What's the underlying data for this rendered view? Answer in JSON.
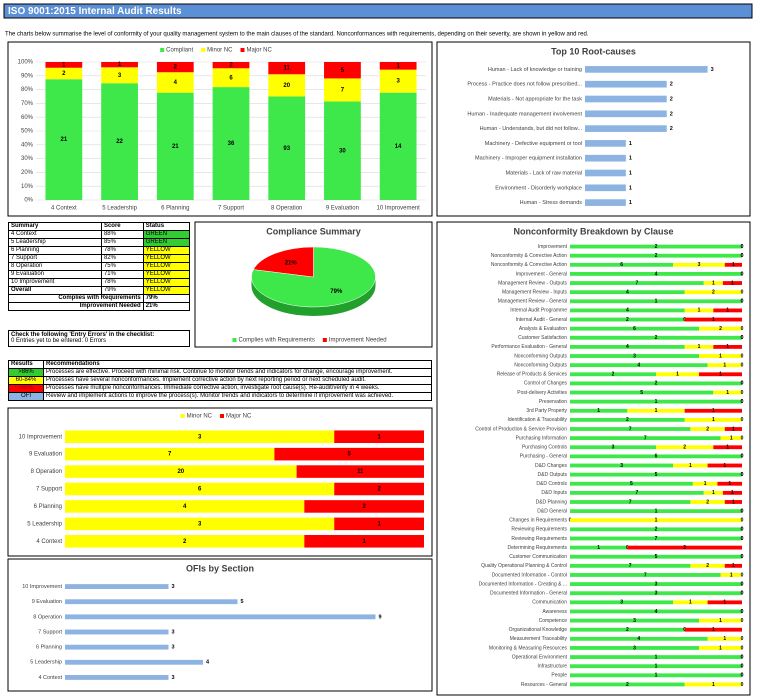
{
  "header": {
    "title": "ISO 9001:2015 Internal Audit Results",
    "subtitle": "The charts below summarise the level of conformity of your quality management system to the main clauses of the standard. Nonconformances with requirements, depending on their severity, are shown in yellow and red."
  },
  "summary": {
    "columns": [
      "Summary",
      "Score",
      "Status"
    ],
    "rows": [
      {
        "section": "4 Context",
        "score": "88%",
        "status": "GREEN",
        "color": "#33cc33"
      },
      {
        "section": "5 Leadership",
        "score": "85%",
        "status": "GREEN",
        "color": "#33cc33"
      },
      {
        "section": "6 Planning",
        "score": "78%",
        "status": "YELLOW",
        "color": "#ffff00"
      },
      {
        "section": "7 Support",
        "score": "82%",
        "status": "YELLOW",
        "color": "#ffff00"
      },
      {
        "section": "8 Operation",
        "score": "75%",
        "status": "YELLOW",
        "color": "#ffff00"
      },
      {
        "section": "9 Evaluation",
        "score": "71%",
        "status": "YELLOW",
        "color": "#ffff00"
      },
      {
        "section": "10 Improvement",
        "score": "78%",
        "status": "YELLOW",
        "color": "#ffff00"
      }
    ],
    "overall": {
      "section": "Overall",
      "score": "79%",
      "status": "YELLOW",
      "color": "#ffff00"
    },
    "totals": [
      {
        "label": "Complies with Requirements",
        "value": "79%"
      },
      {
        "label": "Improvement Needed",
        "value": "21%"
      }
    ]
  },
  "entry_errors": {
    "heading": "Check the following 'Entry Errors' in the checklist:",
    "text": "0 Entries yet to be entered: 0 Errors"
  },
  "results": {
    "columns": [
      "Results",
      "Recommendations"
    ],
    "rows": [
      {
        "range": ">86%",
        "text": "Processes are effective. Proceed with minimal risk. Continue to monitor trends and indicators for change, encourage improvement.",
        "color": "#33cc33",
        "ink": "#000000"
      },
      {
        "range": "60-84%",
        "text": "Processes have several nonconformances. Implement corrective action by next reporting period or next scheduled audit.",
        "color": "#ffff00",
        "ink": "#000000"
      },
      {
        "range": "<60%",
        "text": "Processes have multiple nonconformances. Immediate corrective action, investigate root cause(s). Re-audit/verify in 4 weeks.",
        "color": "#ff0000",
        "ink": "#b00000"
      },
      {
        "range": "OFI",
        "text": "Review and implement actions to improve the process(s). Monitor trends and indicators to determine if improvement was achieved.",
        "color": "#8db3e2",
        "ink": "#000000"
      }
    ]
  },
  "chart_data": [
    {
      "type": "bar",
      "stacked": "percent",
      "categories": [
        "4 Context",
        "5 Leadership",
        "6 Planning",
        "7 Support",
        "8 Operation",
        "9 Evaluation",
        "10 Improvement"
      ],
      "series": [
        {
          "name": "Compliant",
          "color": "#3ee84a",
          "values": [
            21,
            22,
            21,
            36,
            93,
            30,
            14
          ]
        },
        {
          "name": "Minor NC",
          "color": "#ffff00",
          "values": [
            2,
            3,
            4,
            6,
            20,
            7,
            3
          ]
        },
        {
          "name": "Major NC",
          "color": "#ff0000",
          "values": [
            1,
            1,
            2,
            2,
            11,
            5,
            1
          ]
        }
      ],
      "ylim": [
        0,
        100
      ],
      "yticks": [
        {
          "value": 0,
          "label": "0%"
        },
        {
          "value": 10,
          "label": "10%"
        },
        {
          "value": 20,
          "label": "20%"
        },
        {
          "value": 30,
          "label": "30%"
        },
        {
          "value": 40,
          "label": "40%"
        },
        {
          "value": 50,
          "label": "50%"
        },
        {
          "value": 60,
          "label": "60%"
        },
        {
          "value": 70,
          "label": "70%"
        },
        {
          "value": 80,
          "label": "80%"
        },
        {
          "value": 90,
          "label": "90%"
        },
        {
          "value": 100,
          "label": "100%"
        }
      ],
      "grid": true,
      "legend": "top"
    },
    {
      "type": "hbar",
      "title": "Top 10 Root-causes",
      "categories": [
        "Human - Lack of knowledge or training",
        "Process - Practice does not follow prescribed...",
        "Materials - Not appropriate for the task",
        "Human - Inadequate management involvement",
        "Human - Understands, but did not follow...",
        "Machinery - Defective equipment or tool",
        "Machinery - Improper equipment installation",
        "Materials - Lack of raw material",
        "Environment - Disorderly workplace",
        "Human - Stress demands"
      ],
      "values": [
        3,
        2,
        2,
        2,
        2,
        1,
        1,
        1,
        1,
        1
      ],
      "color": "#8db3e2",
      "xlim": [
        0,
        3.5
      ]
    },
    {
      "type": "pie",
      "title": "Compliance Summary",
      "categories": [
        "Complies with Requirements",
        "Improvement Needed"
      ],
      "values": [
        79,
        21
      ],
      "value_labels": [
        "79%",
        "21%"
      ],
      "colors": [
        "#3ee84a",
        "#ff0000"
      ],
      "legend": "bottom"
    },
    {
      "type": "hbar",
      "stacked": "percent",
      "categories": [
        "10 Improvement",
        "9 Evaluation",
        "8 Operation",
        "7 Support",
        "6 Planning",
        "5 Leadership",
        "4 Context"
      ],
      "series": [
        {
          "name": "Minor NC",
          "color": "#ffff00",
          "values": [
            3,
            7,
            20,
            6,
            4,
            3,
            2
          ]
        },
        {
          "name": "Major NC",
          "color": "#ff0000",
          "values": [
            1,
            5,
            11,
            2,
            2,
            1,
            1
          ]
        }
      ],
      "xlim": [
        0,
        100
      ],
      "legend": "top"
    },
    {
      "type": "hbar",
      "title": "OFIs by Section",
      "categories": [
        "10 Improvement",
        "9 Evaluation",
        "8 Operation",
        "7 Support",
        "6 Planning",
        "5 Leadership",
        "4 Context"
      ],
      "values": [
        3,
        5,
        9,
        3,
        3,
        4,
        3
      ],
      "color": "#8db3e2",
      "xlim": [
        0,
        10
      ]
    },
    {
      "type": "hbar",
      "stacked": "percent",
      "title": "Nonconformity Breakdown by Clause",
      "categories": [
        "Improvement",
        "Nonconformity & Corrective Action",
        "Nonconformity & Corrective Action",
        "Improvement - General",
        "Management Review - Outputs",
        "Management Review - Inputs",
        "Management Review - General",
        "Internal Audit Programme",
        "Internal Audit - General",
        "Analysis & Evaluation",
        "Customer Satisfaction",
        "Performance Evaluation - General",
        "Nonconforming Outputs",
        "Nonconforming Outputs",
        "Release of Products & Services",
        "Control of Changes",
        "Post-delivery Activities",
        "Preservation",
        "3rd Party Property",
        "Identification & Traceability",
        "Control of Production & Service Provision",
        "Purchasing Information",
        "Purchasing Controls",
        "Purchasing - General",
        "D&D Changes",
        "D&D Outputs",
        "D&D Controls",
        "D&D Inputs",
        "D&D Planning",
        "D&D General",
        "Changes in Requirements",
        "Reviewing Requirements",
        "Reviewing Requirements",
        "Determining Requirements",
        "Customer Communication",
        "Quality Operational Planning & Control",
        "Documented Information - Control",
        "Documented Information - Creating & ...",
        "Documented Information - General",
        "Communication",
        "Awareness",
        "Competence",
        "Organizational Knowledge",
        "Measurement Traceability",
        "Monitoring & Measuring Resources",
        "Operational Environment",
        "Infrastructure",
        "People",
        "Resources - General"
      ],
      "series": [
        {
          "color": "#3ee84a",
          "values": [
            2,
            2,
            6,
            4,
            7,
            4,
            1,
            4,
            2,
            6,
            2,
            4,
            3,
            4,
            2,
            2,
            5,
            1,
            1,
            2,
            7,
            7,
            3,
            6,
            3,
            5,
            5,
            7,
            7,
            1,
            0,
            2,
            7,
            1,
            5,
            7,
            7,
            3,
            3,
            3,
            4,
            3,
            2,
            4,
            3,
            1,
            1,
            1,
            2
          ]
        },
        {
          "color": "#ffff00",
          "values": [
            0,
            0,
            3,
            0,
            1,
            2,
            0,
            1,
            0,
            2,
            0,
            1,
            1,
            1,
            1,
            0,
            1,
            0,
            1,
            1,
            2,
            1,
            2,
            0,
            1,
            0,
            1,
            1,
            2,
            0,
            1,
            0,
            0,
            0,
            0,
            2,
            1,
            0,
            0,
            1,
            0,
            1,
            0,
            1,
            1,
            0,
            0,
            0,
            1
          ]
        },
        {
          "color": "#ff0000",
          "values": [
            0,
            0,
            1,
            0,
            1,
            0,
            0,
            1,
            1,
            0,
            0,
            1,
            0,
            0,
            1,
            0,
            0,
            0,
            1,
            0,
            1,
            0,
            1,
            0,
            1,
            0,
            1,
            1,
            1,
            0,
            0,
            0,
            0,
            2,
            0,
            1,
            0,
            0,
            0,
            1,
            0,
            0,
            1,
            0,
            0,
            0,
            0,
            0,
            0
          ]
        }
      ],
      "xlim": [
        0,
        100
      ]
    }
  ]
}
